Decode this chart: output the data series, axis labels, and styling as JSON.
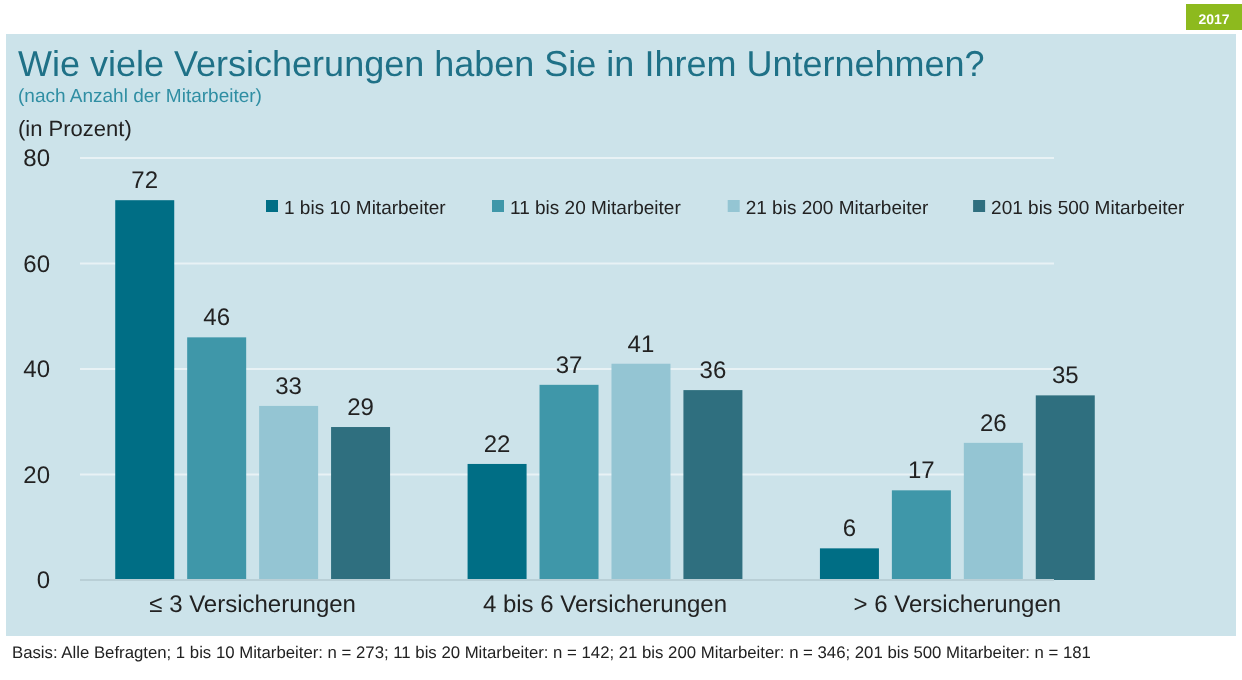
{
  "chart_data": {
    "type": "bar",
    "title": "Wie viele Versicherungen haben Sie in Ihrem Unternehmen?",
    "subtitle": "(nach Anzahl der Mitarbeiter)",
    "ylabel": "(in Prozent)",
    "annotations": [
      "2017",
      "Basis: Alle Befragten; 1 bis 10 Mitarbeiter: n = 273; 11 bis 20 Mitarbeiter: n = 142; 21 bis 200 Mitarbeiter: n = 346; 201 bis 500 Mitarbeiter: n = 181"
    ],
    "categories": [
      "≤ 3 Versicherungen",
      "4 bis 6 Versicherungen",
      "> 6 Versicherungen"
    ],
    "series": [
      {
        "name": "1 bis 10 Mitarbeiter",
        "color": "#006e85",
        "values": [
          72,
          22,
          6
        ]
      },
      {
        "name": "11 bis 20 Mitarbeiter",
        "color": "#3f97a9",
        "values": [
          46,
          37,
          17
        ]
      },
      {
        "name": "21 bis 200 Mitarbeiter",
        "color": "#94c5d3",
        "values": [
          33,
          41,
          26
        ]
      },
      {
        "name": "201 bis 500 Mitarbeiter",
        "color": "#2f6f7f",
        "values": [
          29,
          36,
          35
        ]
      }
    ],
    "ylim": [
      0,
      80
    ],
    "yticks": [
      0,
      20,
      40,
      60,
      80
    ],
    "grid": "y",
    "legend": "top right",
    "data_labels": true
  }
}
